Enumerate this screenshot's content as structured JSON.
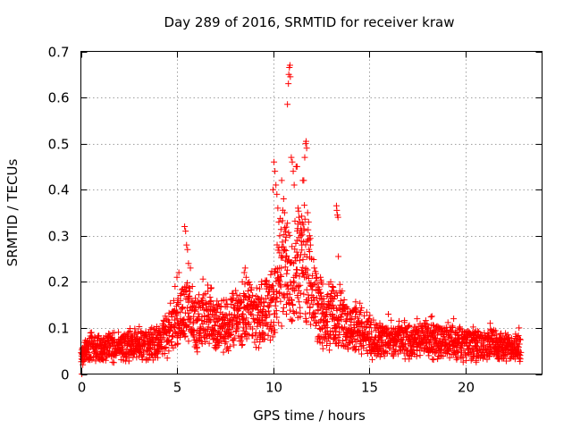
{
  "chart_data": {
    "type": "scatter",
    "title": "Day 289 of 2016, SRMTID for receiver kraw",
    "xlabel": "GPS time / hours",
    "ylabel": "SRMTID / TECUs",
    "xlim": [
      0,
      24
    ],
    "ylim": [
      0,
      0.7
    ],
    "xticks": [
      "0",
      "5",
      "10",
      "15",
      "20"
    ],
    "yticks": [
      "0",
      "0.1",
      "0.2",
      "0.3",
      "0.4",
      "0.5",
      "0.6",
      "0.7"
    ],
    "grid": true,
    "marker": "+",
    "marker_color": "#ff0000",
    "envelope": {
      "x": [
        0,
        0.5,
        1,
        1.5,
        2,
        2.5,
        3,
        3.5,
        4,
        4.3,
        4.6,
        5,
        5.3,
        5.6,
        6,
        6.4,
        6.8,
        7.2,
        7.6,
        8,
        8.4,
        8.8,
        9.2,
        9.6,
        10,
        10.2,
        10.5,
        10.8,
        11,
        11.3,
        11.6,
        12,
        12.4,
        12.8,
        13.2,
        13.6,
        14,
        14.5,
        15,
        15.5,
        16,
        16.5,
        17,
        17.5,
        18,
        18.5,
        19,
        19.5,
        20,
        20.5,
        21,
        21.5,
        22,
        22.5,
        22.9
      ],
      "y": [
        0.05,
        0.06,
        0.055,
        0.06,
        0.058,
        0.062,
        0.065,
        0.068,
        0.07,
        0.08,
        0.1,
        0.12,
        0.14,
        0.13,
        0.11,
        0.13,
        0.12,
        0.1,
        0.11,
        0.13,
        0.12,
        0.14,
        0.12,
        0.14,
        0.16,
        0.2,
        0.24,
        0.22,
        0.2,
        0.23,
        0.26,
        0.18,
        0.14,
        0.12,
        0.13,
        0.12,
        0.1,
        0.11,
        0.08,
        0.075,
        0.07,
        0.075,
        0.072,
        0.07,
        0.078,
        0.075,
        0.07,
        0.072,
        0.068,
        0.065,
        0.062,
        0.065,
        0.06,
        0.06,
        0.06
      ]
    },
    "points": [
      [
        4.9,
        0.19
      ],
      [
        5.0,
        0.21
      ],
      [
        5.1,
        0.22
      ],
      [
        5.4,
        0.32
      ],
      [
        5.45,
        0.31
      ],
      [
        5.5,
        0.28
      ],
      [
        5.55,
        0.27
      ],
      [
        5.6,
        0.24
      ],
      [
        5.7,
        0.23
      ],
      [
        5.8,
        0.19
      ],
      [
        8.4,
        0.2
      ],
      [
        8.5,
        0.22
      ],
      [
        8.55,
        0.23
      ],
      [
        8.6,
        0.21
      ],
      [
        8.7,
        0.18
      ],
      [
        10.0,
        0.4
      ],
      [
        10.05,
        0.46
      ],
      [
        10.1,
        0.44
      ],
      [
        10.15,
        0.41
      ],
      [
        10.2,
        0.39
      ],
      [
        10.25,
        0.36
      ],
      [
        10.3,
        0.33
      ],
      [
        10.35,
        0.3
      ],
      [
        10.45,
        0.42
      ],
      [
        10.55,
        0.38
      ],
      [
        10.6,
        0.35
      ],
      [
        10.65,
        0.29
      ],
      [
        10.75,
        0.585
      ],
      [
        10.8,
        0.63
      ],
      [
        10.82,
        0.65
      ],
      [
        10.85,
        0.665
      ],
      [
        10.88,
        0.67
      ],
      [
        10.9,
        0.645
      ],
      [
        10.95,
        0.47
      ],
      [
        11.0,
        0.46
      ],
      [
        11.05,
        0.44
      ],
      [
        11.1,
        0.41
      ],
      [
        11.2,
        0.45
      ],
      [
        11.25,
        0.45
      ],
      [
        11.3,
        0.36
      ],
      [
        11.35,
        0.34
      ],
      [
        11.4,
        0.33
      ],
      [
        11.45,
        0.3
      ],
      [
        11.5,
        0.28
      ],
      [
        11.55,
        0.42
      ],
      [
        11.6,
        0.42
      ],
      [
        11.65,
        0.47
      ],
      [
        11.7,
        0.5
      ],
      [
        11.72,
        0.505
      ],
      [
        11.75,
        0.49
      ],
      [
        11.8,
        0.35
      ],
      [
        11.85,
        0.33
      ],
      [
        11.9,
        0.3
      ],
      [
        11.95,
        0.28
      ],
      [
        12.0,
        0.25
      ],
      [
        13.3,
        0.365
      ],
      [
        13.32,
        0.355
      ],
      [
        13.35,
        0.345
      ],
      [
        13.38,
        0.34
      ],
      [
        13.4,
        0.255
      ],
      [
        13.0,
        0.2
      ],
      [
        13.1,
        0.19
      ],
      [
        13.6,
        0.18
      ],
      [
        14.3,
        0.14
      ],
      [
        14.5,
        0.13
      ],
      [
        15.0,
        0.12
      ],
      [
        0.05,
        0.0
      ],
      [
        0.1,
        0.02
      ],
      [
        0.2,
        0.03
      ],
      [
        16.0,
        0.13
      ],
      [
        17.5,
        0.12
      ],
      [
        19.4,
        0.12
      ],
      [
        21.3,
        0.11
      ],
      [
        22.8,
        0.1
      ]
    ],
    "seed": 289
  }
}
